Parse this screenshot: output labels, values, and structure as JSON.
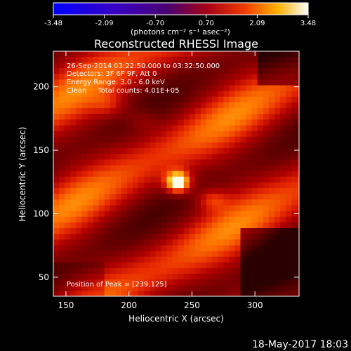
{
  "colorbar": {
    "ticks": [
      "-3.48",
      "-2.09",
      "-0.70",
      "0.70",
      "2.09",
      "3.48"
    ],
    "unit_label": "(photons cm⁻² s⁻¹ asec⁻²)"
  },
  "title": "Reconstructed RHESSI Image",
  "annotations": {
    "line1": "26-Sep-2014 03:22:50.000 to 03:32:50.000",
    "line2": "Detectors: 3F 6F 9F, Att 0",
    "line3": "Energy Range: 3.0 - 6.0 keV",
    "line4": "Clean     Total counts: 4.01E+05",
    "peak": "Position of Peak = [239,125]"
  },
  "footer_timestamp": "18-May-2017 18:03",
  "chart_data": {
    "type": "heatmap",
    "title": "Reconstructed RHESSI Image",
    "xlabel": "Heliocentric X (arcsec)",
    "ylabel": "Heliocentric Y (arcsec)",
    "xlim": [
      140,
      335
    ],
    "ylim": [
      35,
      228
    ],
    "xticks": [
      150,
      200,
      250,
      300
    ],
    "yticks": [
      50,
      100,
      150,
      200
    ],
    "colorbar_range": [
      -3.48,
      3.48
    ],
    "colormap": "red-temperature",
    "peak": {
      "x": 239,
      "y": 125
    },
    "blobs": [
      {
        "x": 239,
        "y": 125,
        "amp": 3.0,
        "sx": 7,
        "sy": 6
      },
      {
        "x": 265,
        "y": 112,
        "amp": 1.0,
        "sx": 9,
        "sy": 6
      },
      {
        "x": 185,
        "y": 185,
        "amp": 0.7,
        "sx": 10,
        "sy": 7
      },
      {
        "x": 210,
        "y": 175,
        "amp": 0.6,
        "sx": 10,
        "sy": 7
      }
    ],
    "grid": false
  }
}
